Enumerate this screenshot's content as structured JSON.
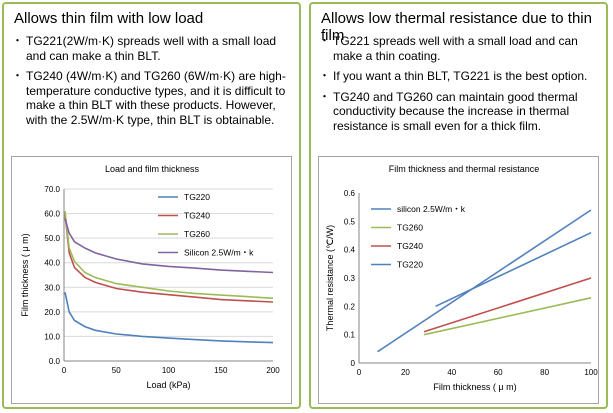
{
  "left_panel": {
    "title": "Allows thin film with low load",
    "bullets": [
      "TG221(2W/m·K) spreads well with a small load and can make a thin BLT.",
      "TG240 (4W/m·K) and TG260 (6W/m·K) are high-temperature conductive types, and it is difficult to make a thin BLT with these products. However, with the 2.5W/m·K type, thin BLT is obtainable."
    ]
  },
  "right_panel": {
    "title": "Allows low thermal resistance due to thin film",
    "bullets": [
      "TG221 spreads well with a small load and can make a thin coating.",
      "If you want a thin BLT, TG221 is the best option.",
      "TG240 and TG260 can maintain good thermal conductivity because the increase in thermal resistance is small even for a thick film."
    ]
  },
  "chart_data": [
    {
      "type": "line",
      "title": "Load and film thickness",
      "xlabel": "Load (kPa)",
      "ylabel": "Film thickness ( μ m)",
      "xlim": [
        0,
        200
      ],
      "ylim": [
        0,
        70
      ],
      "x_ticks": [
        "0",
        "50",
        "100",
        "150",
        "200"
      ],
      "y_ticks": [
        "0.0",
        "10.0",
        "20.0",
        "30.0",
        "40.0",
        "50.0",
        "60.0",
        "70.0"
      ],
      "grid": true,
      "legend_position": "top-right",
      "series": [
        {
          "name": "TG220",
          "color": "#4f81bd",
          "x": [
            1,
            5,
            10,
            20,
            30,
            50,
            75,
            100,
            125,
            150,
            175,
            200
          ],
          "values": [
            28,
            20,
            16.5,
            14,
            12.5,
            11,
            10,
            9.3,
            8.7,
            8.2,
            7.8,
            7.5
          ]
        },
        {
          "name": "TG240",
          "color": "#c0504d",
          "x": [
            1,
            5,
            10,
            20,
            30,
            50,
            75,
            100,
            125,
            150,
            175,
            200
          ],
          "values": [
            60,
            44,
            38,
            34,
            32,
            29.5,
            28,
            27,
            26,
            25,
            24.5,
            24
          ]
        },
        {
          "name": "TG260",
          "color": "#9bbb59",
          "x": [
            1,
            5,
            10,
            20,
            30,
            50,
            75,
            100,
            125,
            150,
            175,
            200
          ],
          "values": [
            61,
            46,
            40.5,
            36,
            34,
            31.5,
            30,
            28.5,
            27.5,
            26.8,
            26.2,
            25.5
          ]
        },
        {
          "name": "Silicon 2.5W/m・k",
          "color": "#8064a2",
          "x": [
            1,
            5,
            10,
            20,
            30,
            50,
            75,
            100,
            125,
            150,
            175,
            200
          ],
          "values": [
            58,
            52,
            48.5,
            46,
            44,
            41.5,
            39.5,
            38.5,
            37.8,
            37,
            36.5,
            36
          ]
        }
      ]
    },
    {
      "type": "line",
      "title": "Film thickness and thermal resistance",
      "xlabel": "Film thickness ( μ m)",
      "ylabel": "Thermal resistance (℃/W)",
      "xlim": [
        0,
        100
      ],
      "ylim": [
        0,
        0.6
      ],
      "x_ticks": [
        "0",
        "20",
        "40",
        "60",
        "80",
        "100"
      ],
      "y_ticks": [
        "0",
        "0.1",
        "0.2",
        "0.3",
        "0.4",
        "0.5",
        "0.6"
      ],
      "grid": false,
      "legend_position": "top-left",
      "series": [
        {
          "name": "silicon 2.5W/m・k",
          "color": "#4f81bd",
          "x": [
            33,
            100
          ],
          "values": [
            0.2,
            0.46
          ]
        },
        {
          "name": "TG260",
          "color": "#9bbb59",
          "x": [
            28,
            100
          ],
          "values": [
            0.1,
            0.23
          ]
        },
        {
          "name": "TG240",
          "color": "#c0504d",
          "x": [
            28,
            100
          ],
          "values": [
            0.11,
            0.3
          ]
        },
        {
          "name": "TG220",
          "color": "#4f81bd",
          "x": [
            8,
            100
          ],
          "values": [
            0.04,
            0.54
          ]
        }
      ]
    }
  ]
}
